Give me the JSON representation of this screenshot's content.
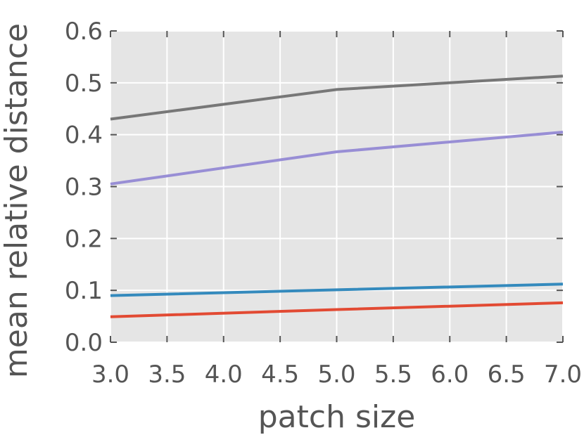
{
  "chart_data": {
    "type": "line",
    "title": "",
    "xlabel": "patch size",
    "ylabel": "mean relative distance",
    "xlim": [
      3.0,
      7.0
    ],
    "ylim": [
      0.0,
      0.6
    ],
    "xticks": [
      "3.0",
      "3.5",
      "4.0",
      "4.5",
      "5.0",
      "5.5",
      "6.0",
      "6.5",
      "7.0"
    ],
    "yticks": [
      "0.0",
      "0.1",
      "0.2",
      "0.3",
      "0.4",
      "0.5",
      "0.6"
    ],
    "grid": true,
    "x": [
      3,
      5,
      7
    ],
    "series": [
      {
        "values": [
          0.43,
          0.487,
          0.513
        ],
        "color": "#777777"
      },
      {
        "values": [
          0.305,
          0.367,
          0.405
        ],
        "color": "#988ED5"
      },
      {
        "values": [
          0.09,
          0.101,
          0.112
        ],
        "color": "#348ABD"
      },
      {
        "values": [
          0.049,
          0.063,
          0.076
        ],
        "color": "#E24A33"
      }
    ],
    "colors": {
      "background": "#E5E5E5",
      "grid": "#FFFFFF",
      "text": "#555555"
    }
  }
}
